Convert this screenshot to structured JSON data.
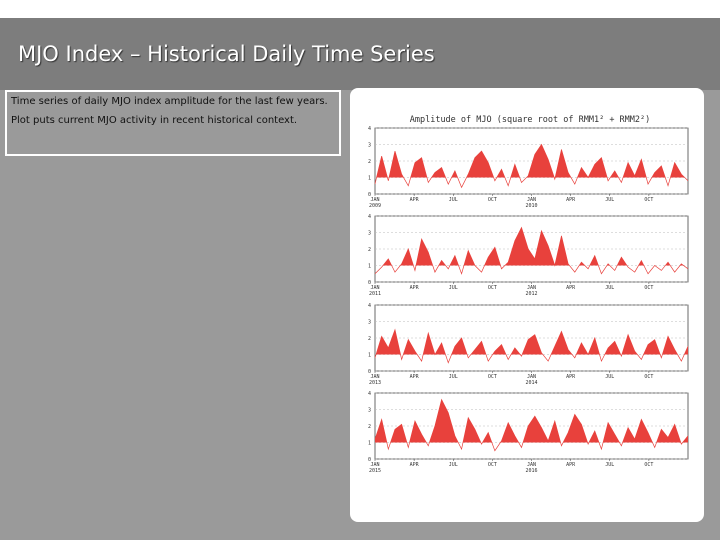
{
  "header": {
    "title": "MJO Index – Historical Daily Time Series"
  },
  "text_box": {
    "lines": [
      "Time series of daily MJO index amplitude for the last few years.",
      "Plot puts current MJO activity in recent historical context."
    ]
  },
  "chart": {
    "title": "Amplitude of MJO (square root of RMM1² + RMM2²)",
    "ylim": [
      0,
      4
    ],
    "yticks": [
      0,
      1,
      2,
      3,
      4
    ],
    "fill_above": 1,
    "color": "#e8413c",
    "panels": [
      {
        "xticks": [
          {
            "label": "JAN",
            "year": "2009"
          },
          {
            "label": "APR"
          },
          {
            "label": "JUL"
          },
          {
            "label": "OCT"
          },
          {
            "label": "JAN",
            "year": "2010"
          },
          {
            "label": "APR"
          },
          {
            "label": "JUL"
          },
          {
            "label": "OCT"
          }
        ],
        "values": [
          0.6,
          2.3,
          0.8,
          2.6,
          1.2,
          0.5,
          1.9,
          2.2,
          0.7,
          1.3,
          1.6,
          0.6,
          1.4,
          0.4,
          1.2,
          2.2,
          2.6,
          1.9,
          0.8,
          1.5,
          0.5,
          1.8,
          0.7,
          1.1,
          2.4,
          3.0,
          2.1,
          0.9,
          2.7,
          1.3,
          0.6,
          1.6,
          1.0,
          1.8,
          2.2,
          0.8,
          1.4,
          0.7,
          1.9,
          1.1,
          2.1,
          0.6,
          1.3,
          1.7,
          0.5,
          1.9,
          1.2,
          0.8
        ]
      },
      {
        "xticks": [
          {
            "label": "JAN",
            "year": "2011"
          },
          {
            "label": "APR"
          },
          {
            "label": "JUL"
          },
          {
            "label": "OCT"
          },
          {
            "label": "JAN",
            "year": "2012"
          },
          {
            "label": "APR"
          },
          {
            "label": "JUL"
          },
          {
            "label": "OCT"
          }
        ],
        "values": [
          0.5,
          0.9,
          1.4,
          0.6,
          1.1,
          2.0,
          0.7,
          2.6,
          1.8,
          0.6,
          1.3,
          0.8,
          1.6,
          0.5,
          1.9,
          1.0,
          0.6,
          1.5,
          2.1,
          0.8,
          1.2,
          2.5,
          3.3,
          2.0,
          1.4,
          3.1,
          2.2,
          1.0,
          2.8,
          1.1,
          0.6,
          1.2,
          0.8,
          1.6,
          0.5,
          1.1,
          0.7,
          1.5,
          0.9,
          0.6,
          1.3,
          0.5,
          1.0,
          0.7,
          1.2,
          0.6,
          1.1,
          0.8
        ]
      },
      {
        "xticks": [
          {
            "label": "JAN",
            "year": "2013"
          },
          {
            "label": "APR"
          },
          {
            "label": "JUL"
          },
          {
            "label": "OCT"
          },
          {
            "label": "JAN",
            "year": "2014"
          },
          {
            "label": "APR"
          },
          {
            "label": "JUL"
          },
          {
            "label": "OCT"
          }
        ],
        "values": [
          0.8,
          2.1,
          1.4,
          2.5,
          0.7,
          1.9,
          1.2,
          0.6,
          2.3,
          1.0,
          1.7,
          0.5,
          1.5,
          2.0,
          0.8,
          1.3,
          1.8,
          0.6,
          1.2,
          1.6,
          0.7,
          1.4,
          0.9,
          1.9,
          2.2,
          1.1,
          0.6,
          1.5,
          2.4,
          1.3,
          0.8,
          1.7,
          1.0,
          2.0,
          0.6,
          1.4,
          1.8,
          0.9,
          2.2,
          1.2,
          0.7,
          1.6,
          1.9,
          0.8,
          2.1,
          1.3,
          0.6,
          1.5
        ]
      },
      {
        "xticks": [
          {
            "label": "JAN",
            "year": "2015"
          },
          {
            "label": "APR"
          },
          {
            "label": "JUL"
          },
          {
            "label": "OCT"
          },
          {
            "label": "JAN",
            "year": "2016"
          },
          {
            "label": "APR"
          },
          {
            "label": "JUL"
          },
          {
            "label": "OCT"
          }
        ],
        "values": [
          1.2,
          2.4,
          0.6,
          1.8,
          2.1,
          0.7,
          2.3,
          1.5,
          0.8,
          2.0,
          3.6,
          2.8,
          1.4,
          0.6,
          2.5,
          1.8,
          0.9,
          1.6,
          0.5,
          1.1,
          2.2,
          1.4,
          0.7,
          2.0,
          2.6,
          1.9,
          1.1,
          2.3,
          0.8,
          1.6,
          2.7,
          2.1,
          0.9,
          1.7,
          0.6,
          2.2,
          1.5,
          0.8,
          1.9,
          1.2,
          2.4,
          1.6,
          0.7,
          1.8,
          1.3,
          2.1,
          0.9,
          1.4
        ]
      }
    ]
  }
}
